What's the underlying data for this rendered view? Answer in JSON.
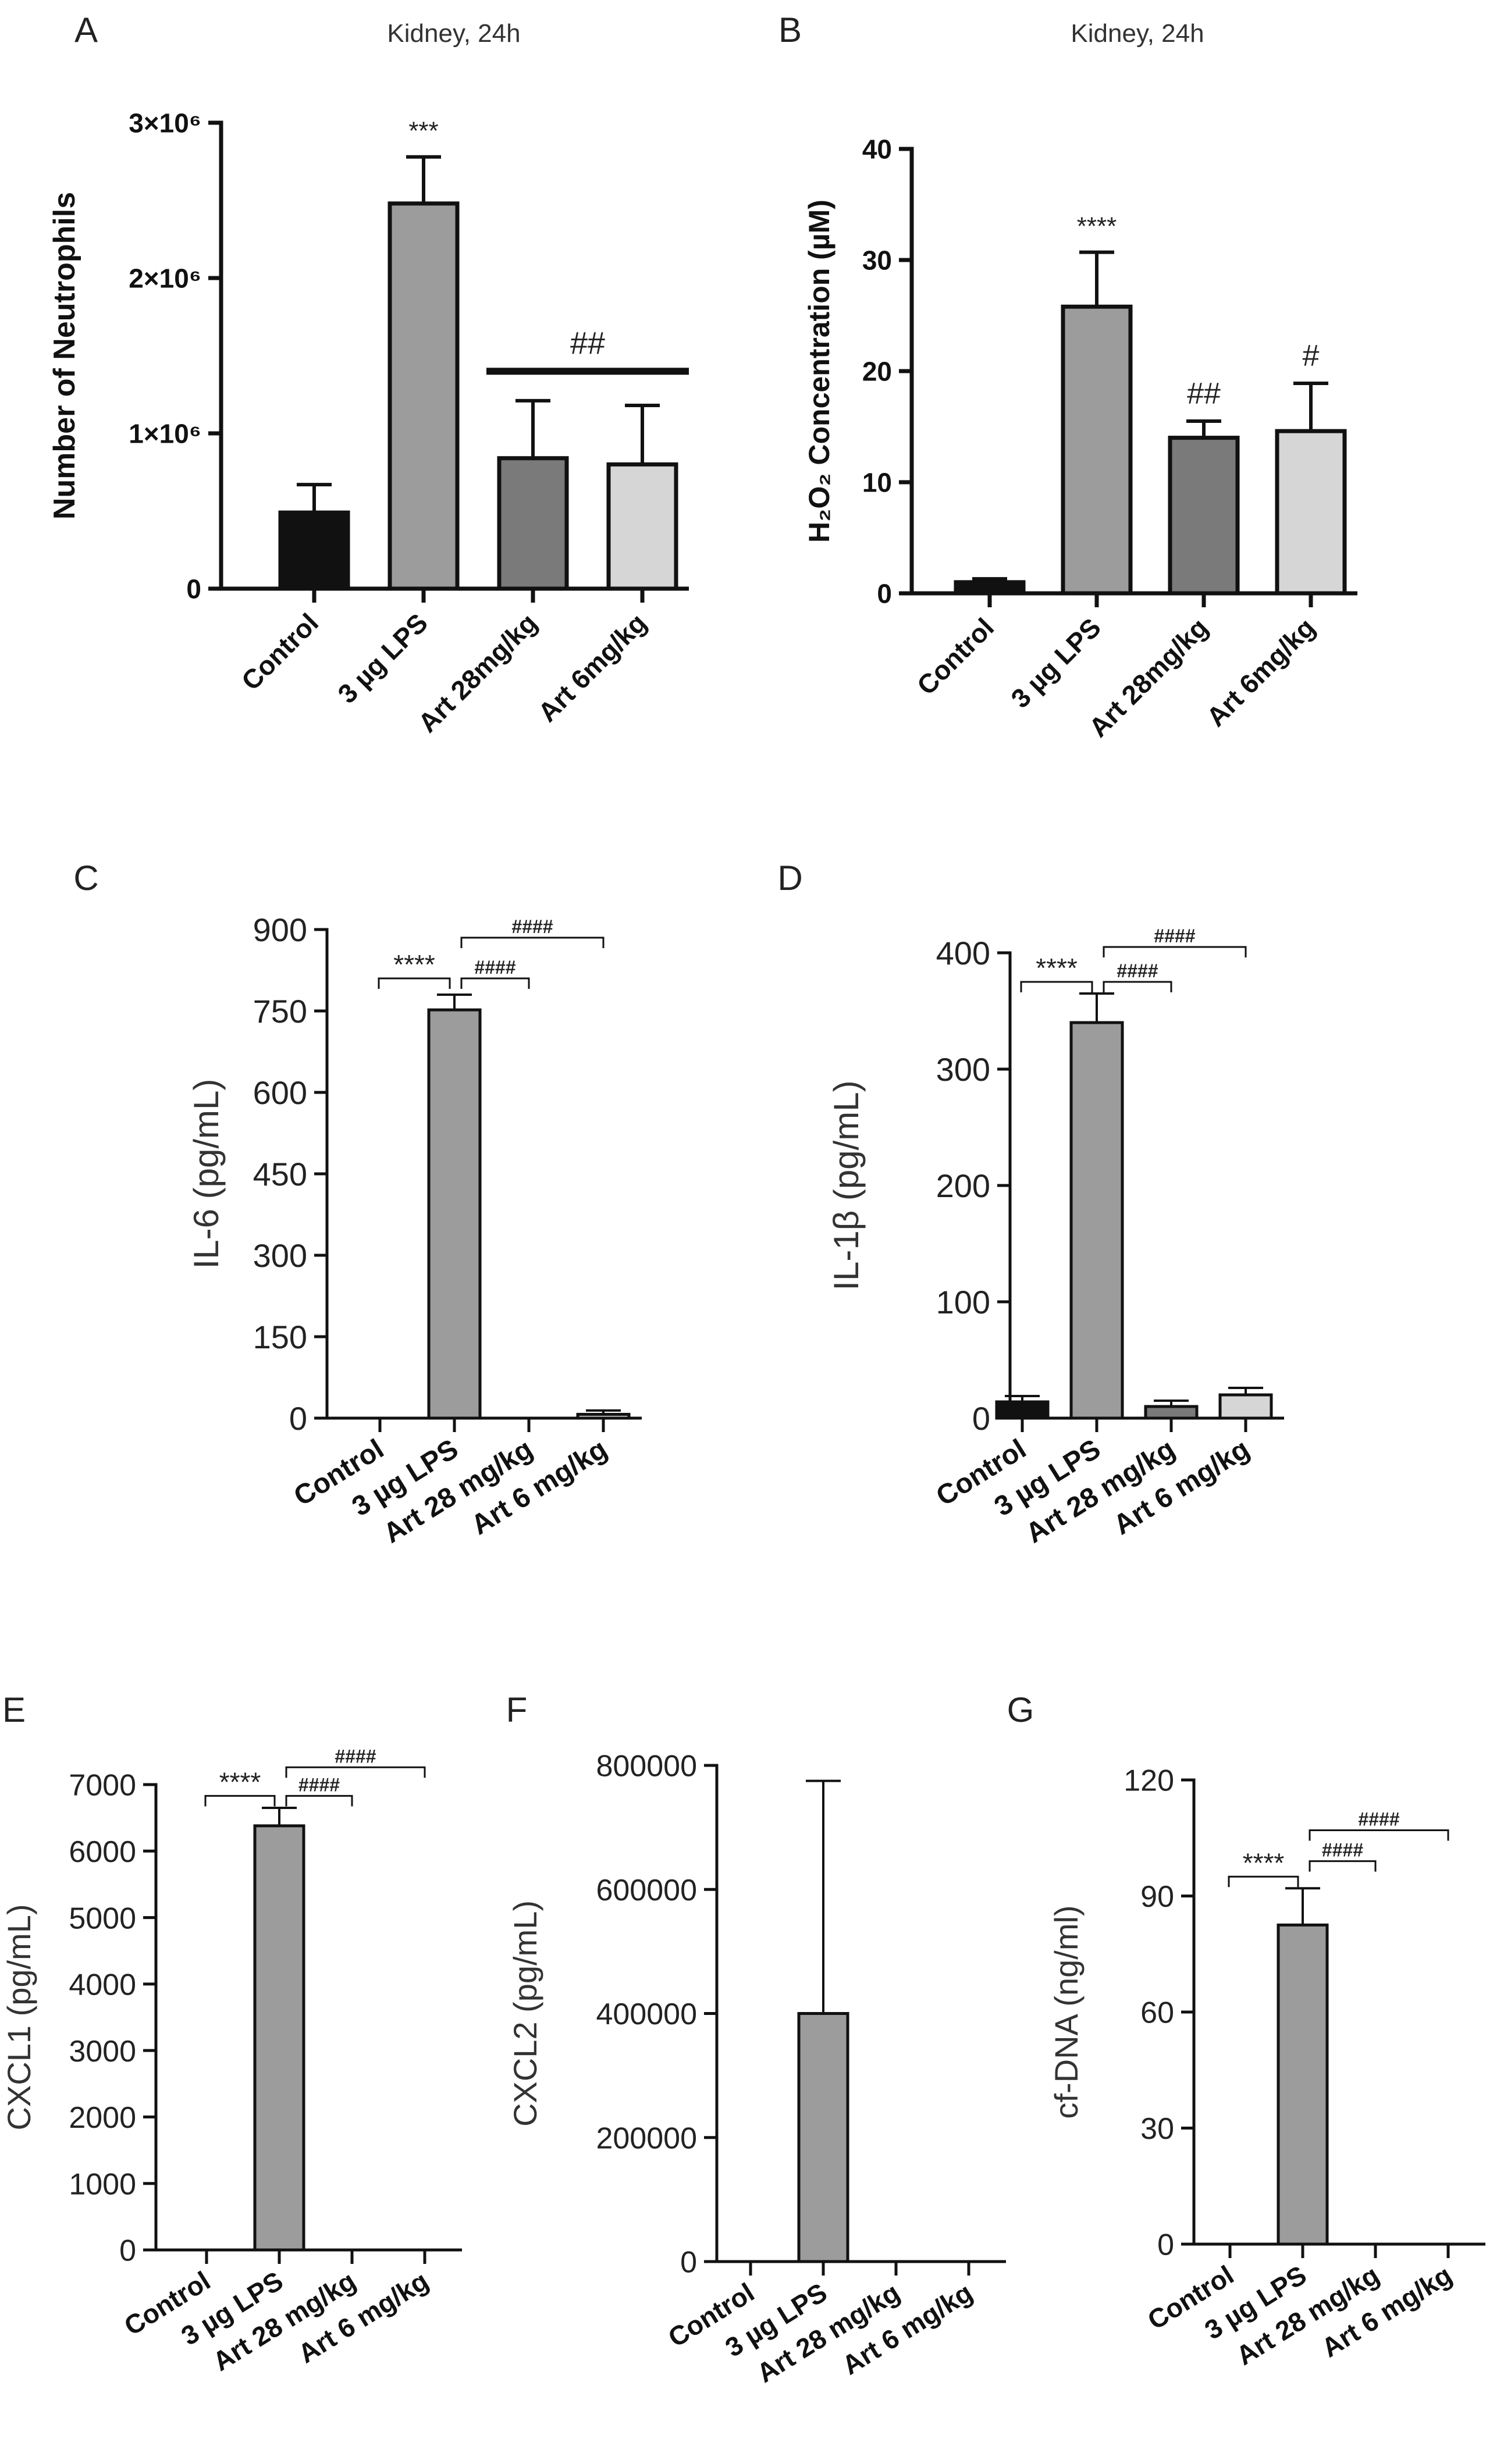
{
  "chart_data": [
    {
      "id": "A",
      "type": "bar",
      "panel_label": "A",
      "title": "Kidney, 24h",
      "ylabel": "Number of Neutrophils",
      "ylim": [
        0,
        3000000
      ],
      "yticks": [
        0,
        1000000,
        2000000,
        3000000
      ],
      "ytick_labels": [
        "0",
        "1×10⁶",
        "2×10⁶",
        "3×10⁶"
      ],
      "categories": [
        "Control",
        "3 µg LPS",
        "Art 28mg/kg",
        "Art 6mg/kg"
      ],
      "values": [
        490000,
        2480000,
        840000,
        800000
      ],
      "errors": [
        180000,
        300000,
        370000,
        380000
      ],
      "colors": [
        "#111111",
        "#9c9c9c",
        "#7a7a7a",
        "#d6d6d6"
      ],
      "annotations": [
        {
          "type": "label",
          "bar": 1,
          "text": "***"
        },
        {
          "type": "group_line",
          "from": 2,
          "to": 3,
          "y": 1400000,
          "text": "##"
        }
      ]
    },
    {
      "id": "B",
      "type": "bar",
      "panel_label": "B",
      "title": "Kidney, 24h",
      "ylabel": "H₂O₂ Concentration (µM)",
      "ylim": [
        0,
        40
      ],
      "yticks": [
        0,
        10,
        20,
        30,
        40
      ],
      "ytick_labels": [
        "0",
        "10",
        "20",
        "30",
        "40"
      ],
      "categories": [
        "Control",
        "3 µg LPS",
        "Art 28mg/kg",
        "Art 6mg/kg"
      ],
      "values": [
        1.0,
        25.8,
        14.0,
        14.6
      ],
      "errors": [
        0.3,
        4.9,
        1.5,
        4.3
      ],
      "colors": [
        "#111111",
        "#9c9c9c",
        "#7a7a7a",
        "#d6d6d6"
      ],
      "annotations": [
        {
          "type": "label",
          "bar": 1,
          "text": "****"
        },
        {
          "type": "label",
          "bar": 2,
          "text": "##"
        },
        {
          "type": "label",
          "bar": 3,
          "text": "#"
        }
      ]
    },
    {
      "id": "C",
      "type": "bar",
      "panel_label": "C",
      "title": "",
      "ylabel": "IL-6 (pg/mL)",
      "ylim": [
        0,
        900
      ],
      "yticks": [
        0,
        150,
        300,
        450,
        600,
        750,
        900
      ],
      "ytick_labels": [
        "0",
        "150",
        "300",
        "450",
        "600",
        "750",
        "900"
      ],
      "categories": [
        "Control",
        "3 µg LPS",
        "Art 28 mg/kg",
        "Art 6 mg/kg"
      ],
      "values": [
        0,
        752,
        0,
        7
      ],
      "errors": [
        0,
        28,
        0,
        7
      ],
      "colors": [
        "#111111",
        "#9c9c9c",
        "#7a7a7a",
        "#d6d6d6"
      ],
      "annotations": [
        {
          "type": "bracket",
          "from": 0,
          "to": 1,
          "y": 810,
          "text": "****"
        },
        {
          "type": "bracket",
          "from": 1,
          "to": 2,
          "y": 810,
          "text": "####"
        },
        {
          "type": "bracket",
          "from": 1,
          "to": 3,
          "y": 885,
          "text": "####"
        }
      ]
    },
    {
      "id": "D",
      "type": "bar",
      "panel_label": "D",
      "title": "",
      "ylabel": "IL-1β (pg/mL)",
      "ylim": [
        0,
        400
      ],
      "yticks": [
        0,
        100,
        200,
        300,
        400
      ],
      "ytick_labels": [
        "0",
        "100",
        "200",
        "300",
        "400"
      ],
      "categories": [
        "Control",
        "3 µg LPS",
        "Art 28 mg/kg",
        "Art 6 mg/kg"
      ],
      "values": [
        14,
        340,
        10,
        20
      ],
      "errors": [
        5,
        25,
        5,
        6
      ],
      "colors": [
        "#111111",
        "#9c9c9c",
        "#7a7a7a",
        "#d6d6d6"
      ],
      "annotations": [
        {
          "type": "bracket",
          "from": 0,
          "to": 1,
          "y": 375,
          "text": "****"
        },
        {
          "type": "bracket",
          "from": 1,
          "to": 2,
          "y": 375,
          "text": "####"
        },
        {
          "type": "bracket",
          "from": 1,
          "to": 3,
          "y": 405,
          "text": "####"
        }
      ]
    },
    {
      "id": "E",
      "type": "bar",
      "panel_label": "E",
      "title": "",
      "ylabel": "CXCL1 (pg/mL)",
      "ylim": [
        0,
        7000
      ],
      "yticks": [
        0,
        1000,
        2000,
        3000,
        4000,
        5000,
        6000,
        7000
      ],
      "ytick_labels": [
        "0",
        "1000",
        "2000",
        "3000",
        "4000",
        "5000",
        "6000",
        "7000"
      ],
      "categories": [
        "Control",
        "3 µg LPS",
        "Art 28 mg/kg",
        "Art 6 mg/kg"
      ],
      "values": [
        0,
        6380,
        0,
        0
      ],
      "errors": [
        0,
        270,
        0,
        0
      ],
      "colors": [
        "#111111",
        "#9c9c9c",
        "#7a7a7a",
        "#d6d6d6"
      ],
      "annotations": [
        {
          "type": "bracket",
          "from": 0,
          "to": 1,
          "y": 6830,
          "text": "****"
        },
        {
          "type": "bracket",
          "from": 1,
          "to": 2,
          "y": 6830,
          "text": "####"
        },
        {
          "type": "bracket",
          "from": 1,
          "to": 3,
          "y": 7260,
          "text": "####"
        }
      ]
    },
    {
      "id": "F",
      "type": "bar",
      "panel_label": "F",
      "title": "",
      "ylabel": "CXCL2 (pg/mL)",
      "ylim": [
        0,
        800000
      ],
      "yticks": [
        0,
        200000,
        400000,
        600000,
        800000
      ],
      "ytick_labels": [
        "0",
        "200000",
        "400000",
        "600000",
        "800000"
      ],
      "categories": [
        "Control",
        "3 µg LPS",
        "Art 28 mg/kg",
        "Art 6 mg/kg"
      ],
      "values": [
        0,
        400000,
        0,
        0
      ],
      "errors": [
        0,
        375000,
        0,
        0
      ],
      "colors": [
        "#111111",
        "#9c9c9c",
        "#7a7a7a",
        "#d6d6d6"
      ],
      "annotations": []
    },
    {
      "id": "G",
      "type": "bar",
      "panel_label": "G",
      "title": "",
      "ylabel": "cf-DNA (ng/ml)",
      "ylim": [
        0,
        120
      ],
      "yticks": [
        0,
        30,
        60,
        90,
        120
      ],
      "ytick_labels": [
        "0",
        "30",
        "60",
        "90",
        "120"
      ],
      "categories": [
        "Control",
        "3 µg LPS",
        "Art 28 mg/kg",
        "Art 6 mg/kg"
      ],
      "values": [
        0,
        82.5,
        0,
        0
      ],
      "errors": [
        0,
        9.5,
        0,
        0
      ],
      "colors": [
        "#111111",
        "#9c9c9c",
        "#7a7a7a",
        "#d6d6d6"
      ],
      "annotations": [
        {
          "type": "bracket",
          "from": 0,
          "to": 1,
          "y": 95,
          "text": "****"
        },
        {
          "type": "bracket",
          "from": 1,
          "to": 2,
          "y": 99,
          "text": "####"
        },
        {
          "type": "bracket",
          "from": 1,
          "to": 3,
          "y": 107,
          "text": "####"
        }
      ]
    }
  ]
}
